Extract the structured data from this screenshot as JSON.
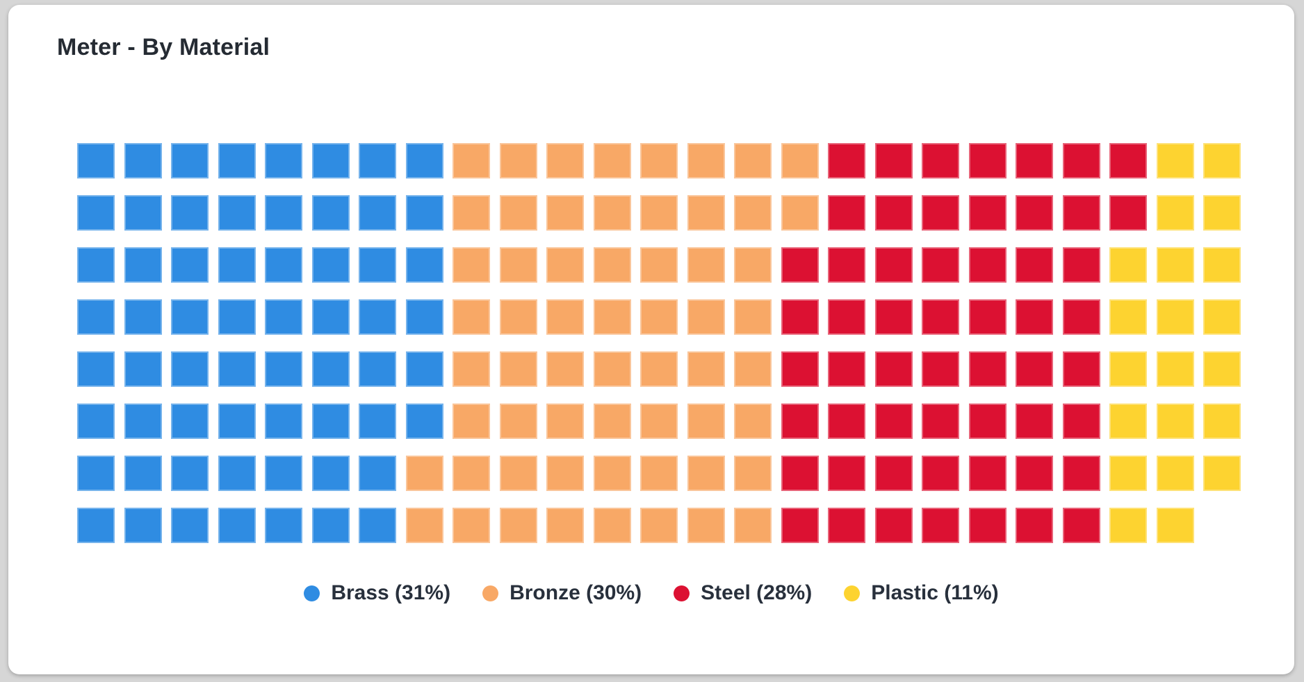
{
  "chart_data": {
    "type": "waffle",
    "title": "Meter - By Material",
    "grid": {
      "rows": 8,
      "columns": 25,
      "total_cells": 199,
      "fill_order": "column-major-top-to-bottom-left-to-right"
    },
    "series": [
      {
        "name": "Brass",
        "percent": 31,
        "units": 62,
        "color": "#2f8ce2",
        "legend_label": "Brass (31%)"
      },
      {
        "name": "Bronze",
        "percent": 30,
        "units": 60,
        "color": "#f8a866",
        "legend_label": "Bronze (30%)"
      },
      {
        "name": "Steel",
        "percent": 28,
        "units": 56,
        "color": "#dc1132",
        "legend_label": "Steel (28%)"
      },
      {
        "name": "Plastic",
        "percent": 11,
        "units": 21,
        "color": "#fdd330",
        "legend_label": "Plastic (11%)"
      }
    ],
    "legend_position": "bottom-center"
  },
  "colors": {
    "page_background": "#d6d6d6",
    "card_background": "#ffffff",
    "title_text": "#252b33",
    "legend_text": "#28303c"
  }
}
